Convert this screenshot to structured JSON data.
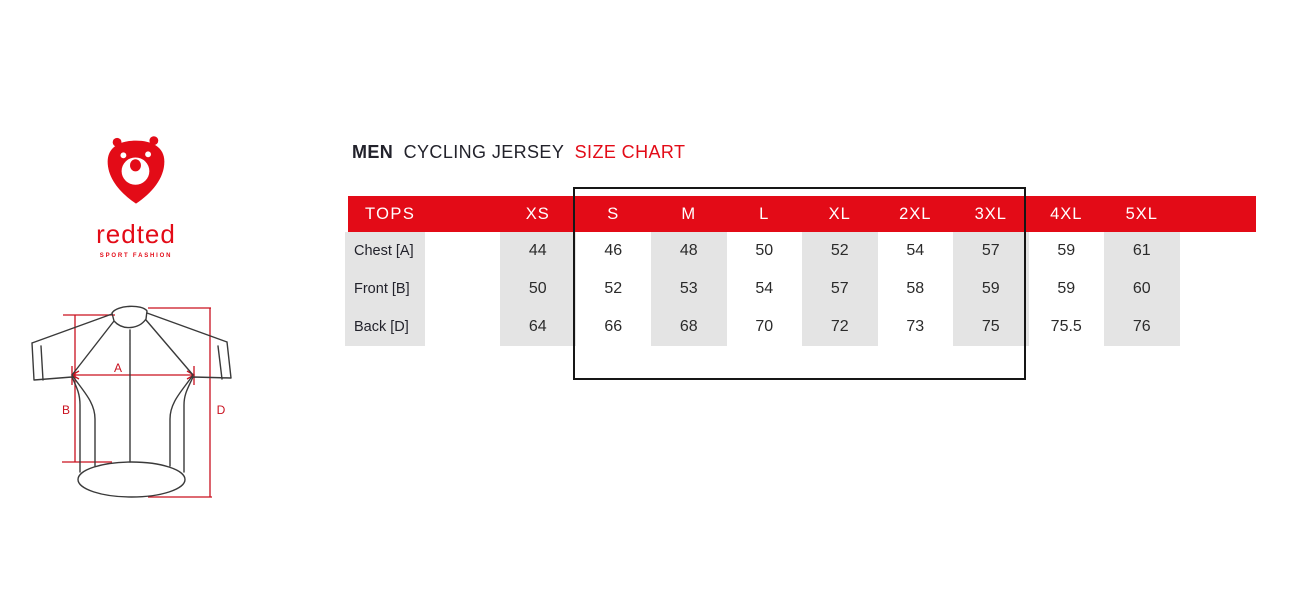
{
  "brand": {
    "name": "redted",
    "tagline": "SPORT FASHION"
  },
  "title": {
    "bold": "MEN",
    "regular": "CYCLING JERSEY",
    "accent": "SIZE CHART"
  },
  "diagram": {
    "label_a": "A",
    "label_b": "B",
    "label_d": "D"
  },
  "chart_data": {
    "type": "table",
    "title": "MEN CYCLING JERSEY SIZE CHART",
    "corner_label": "TOPS",
    "columns": [
      "XS",
      "S",
      "M",
      "L",
      "XL",
      "2XL",
      "3XL",
      "4XL",
      "5XL"
    ],
    "rows": [
      {
        "label": "Chest [A]",
        "values": [
          44,
          46,
          48,
          50,
          52,
          54,
          57,
          59,
          61
        ]
      },
      {
        "label": "Front [B]",
        "values": [
          50,
          52,
          53,
          54,
          57,
          58,
          59,
          59,
          60
        ]
      },
      {
        "label": "Back [D]",
        "values": [
          64,
          66,
          68,
          70,
          72,
          73,
          75,
          75.5,
          76
        ]
      }
    ],
    "shaded_columns": [
      "XS",
      "M",
      "XL",
      "3XL",
      "5XL"
    ],
    "outlined_columns": [
      "S",
      "M",
      "L",
      "XL",
      "2XL",
      "3XL"
    ]
  },
  "colors": {
    "accent_red": "#e30b17",
    "diagram_red": "#c9111f",
    "cell_gray": "#e4e4e4",
    "text_dark": "#22222b",
    "outline_black": "#161616"
  }
}
